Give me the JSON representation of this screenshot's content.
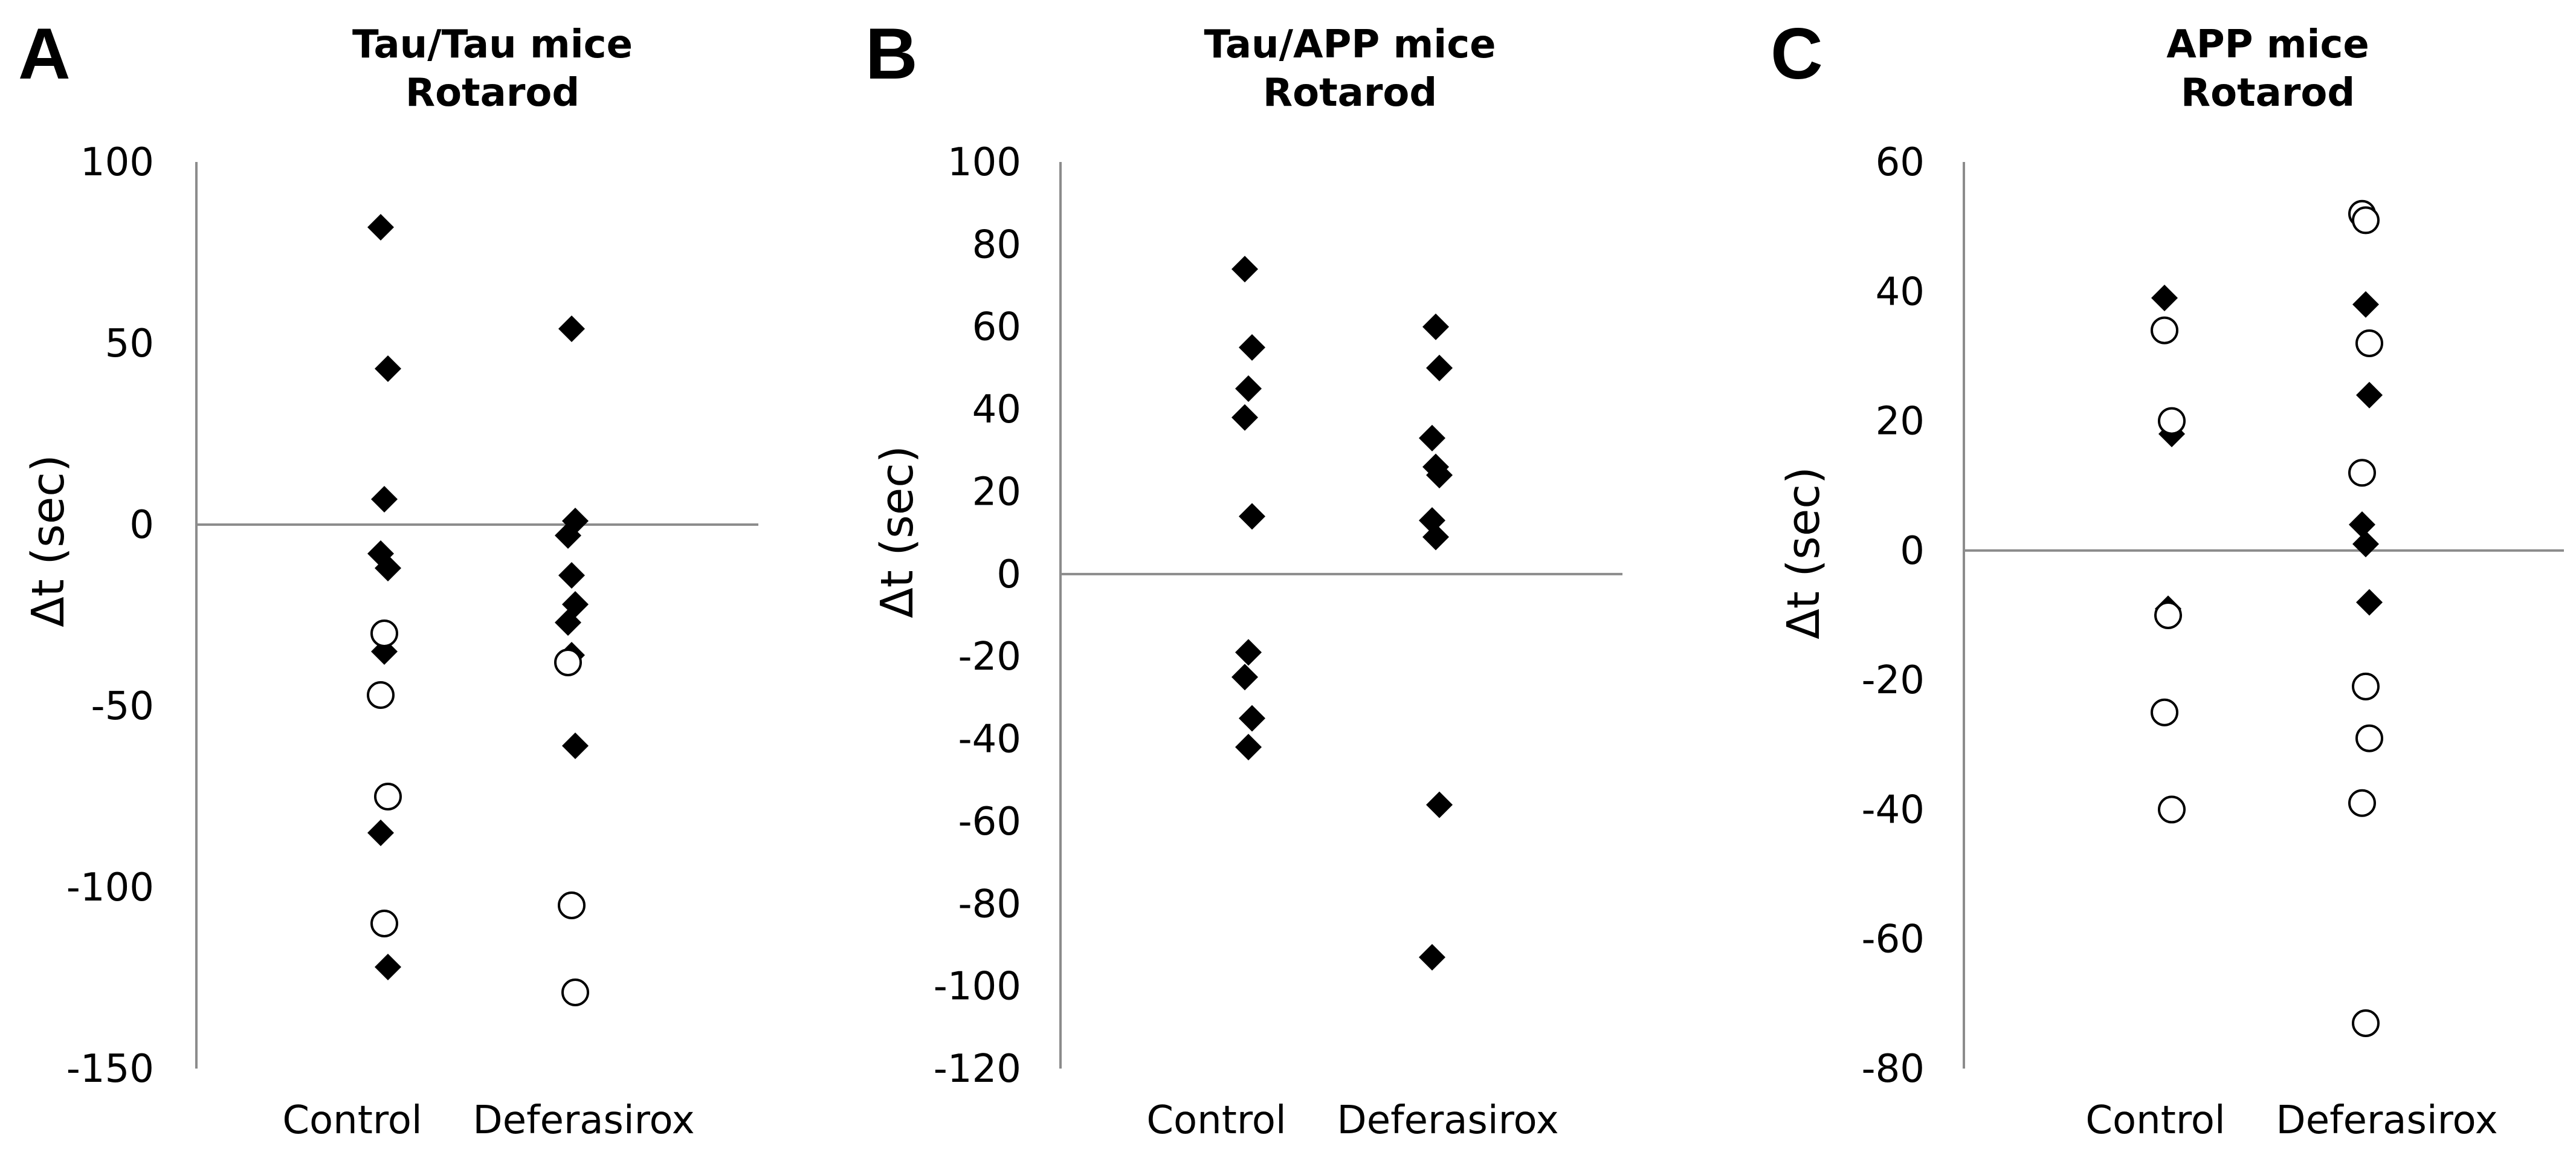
{
  "figure": {
    "legend": "none"
  },
  "chart_data": [
    {
      "panel": "A",
      "type": "scatter",
      "title_line1": "Tau/Tau mice",
      "title_line2": "Rotarod",
      "xlabel": "",
      "ylabel": "Δt (sec)",
      "ylim": [
        -150,
        100
      ],
      "yticks": [
        100,
        50,
        0,
        -50,
        -100,
        -150
      ],
      "categories": [
        "Control",
        "Deferasirox"
      ],
      "series": [
        {
          "name": "filled diamonds",
          "marker": "diamond",
          "points": [
            {
              "category": "Control",
              "y": 82
            },
            {
              "category": "Control",
              "y": 43
            },
            {
              "category": "Control",
              "y": 7
            },
            {
              "category": "Control",
              "y": -8
            },
            {
              "category": "Control",
              "y": -12
            },
            {
              "category": "Control",
              "y": -35
            },
            {
              "category": "Control",
              "y": -85
            },
            {
              "category": "Control",
              "y": -122
            },
            {
              "category": "Deferasirox",
              "y": 54
            },
            {
              "category": "Deferasirox",
              "y": 1
            },
            {
              "category": "Deferasirox",
              "y": -3
            },
            {
              "category": "Deferasirox",
              "y": -14
            },
            {
              "category": "Deferasirox",
              "y": -22
            },
            {
              "category": "Deferasirox",
              "y": -27
            },
            {
              "category": "Deferasirox",
              "y": -36
            },
            {
              "category": "Deferasirox",
              "y": -61
            }
          ]
        },
        {
          "name": "open circles",
          "marker": "circle",
          "points": [
            {
              "category": "Control",
              "y": -30
            },
            {
              "category": "Control",
              "y": -47
            },
            {
              "category": "Control",
              "y": -75
            },
            {
              "category": "Control",
              "y": -110
            },
            {
              "category": "Deferasirox",
              "y": -38
            },
            {
              "category": "Deferasirox",
              "y": -105
            },
            {
              "category": "Deferasirox",
              "y": -129
            }
          ]
        }
      ]
    },
    {
      "panel": "B",
      "type": "scatter",
      "title_line1": "Tau/APP mice",
      "title_line2": "Rotarod",
      "xlabel": "",
      "ylabel": "Δt (sec)",
      "ylim": [
        -120,
        100
      ],
      "yticks": [
        100,
        80,
        60,
        40,
        20,
        0,
        -20,
        -40,
        -60,
        -80,
        -100,
        -120
      ],
      "categories": [
        "Control",
        "Deferasirox"
      ],
      "series": [
        {
          "name": "filled diamonds",
          "marker": "diamond",
          "points": [
            {
              "category": "Control",
              "y": 74
            },
            {
              "category": "Control",
              "y": 55
            },
            {
              "category": "Control",
              "y": 45
            },
            {
              "category": "Control",
              "y": 38
            },
            {
              "category": "Control",
              "y": 14
            },
            {
              "category": "Control",
              "y": -19
            },
            {
              "category": "Control",
              "y": -25
            },
            {
              "category": "Control",
              "y": -35
            },
            {
              "category": "Control",
              "y": -42
            },
            {
              "category": "Deferasirox",
              "y": 60
            },
            {
              "category": "Deferasirox",
              "y": 50
            },
            {
              "category": "Deferasirox",
              "y": 33
            },
            {
              "category": "Deferasirox",
              "y": 26
            },
            {
              "category": "Deferasirox",
              "y": 24
            },
            {
              "category": "Deferasirox",
              "y": 13
            },
            {
              "category": "Deferasirox",
              "y": 9
            },
            {
              "category": "Deferasirox",
              "y": -56
            },
            {
              "category": "Deferasirox",
              "y": -93
            }
          ]
        }
      ]
    },
    {
      "panel": "C",
      "type": "scatter",
      "title_line1": "APP mice",
      "title_line2": "Rotarod",
      "xlabel": "",
      "ylabel": "Δt (sec)",
      "ylim": [
        -80,
        60
      ],
      "yticks": [
        60,
        40,
        20,
        0,
        -20,
        -40,
        -60,
        -80
      ],
      "categories": [
        "Control",
        "Deferasirox"
      ],
      "series": [
        {
          "name": "filled diamonds",
          "marker": "diamond",
          "points": [
            {
              "category": "Control",
              "y": 39
            },
            {
              "category": "Control",
              "y": 18
            },
            {
              "category": "Control",
              "y": -9
            },
            {
              "category": "Deferasirox",
              "y": 38
            },
            {
              "category": "Deferasirox",
              "y": 24
            },
            {
              "category": "Deferasirox",
              "y": 4
            },
            {
              "category": "Deferasirox",
              "y": 1
            },
            {
              "category": "Deferasirox",
              "y": -8
            }
          ]
        },
        {
          "name": "open circles",
          "marker": "circle",
          "points": [
            {
              "category": "Control",
              "y": 34
            },
            {
              "category": "Control",
              "y": 20
            },
            {
              "category": "Control",
              "y": -10
            },
            {
              "category": "Control",
              "y": -25
            },
            {
              "category": "Control",
              "y": -40
            },
            {
              "category": "Deferasirox",
              "y": 52
            },
            {
              "category": "Deferasirox",
              "y": 51
            },
            {
              "category": "Deferasirox",
              "y": 32
            },
            {
              "category": "Deferasirox",
              "y": 12
            },
            {
              "category": "Deferasirox",
              "y": -21
            },
            {
              "category": "Deferasirox",
              "y": -29
            },
            {
              "category": "Deferasirox",
              "y": -39
            },
            {
              "category": "Deferasirox",
              "y": -73
            }
          ]
        }
      ]
    }
  ]
}
